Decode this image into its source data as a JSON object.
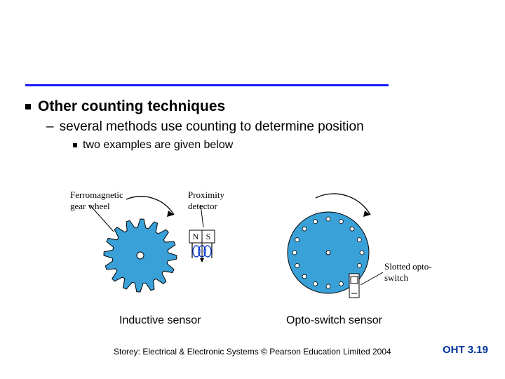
{
  "colors": {
    "rule": "#1a1aff",
    "gear_fill": "#3aa0d8",
    "gear_stroke": "#000000",
    "disc_fill": "#3aa0d8",
    "text": "#000000",
    "page_label": "#003399",
    "magnet_n_s_bg": "#ffffff"
  },
  "heading": "Other counting techniques",
  "sub1": "several methods use counting to determine position",
  "sub2": "two examples are given below",
  "labels": {
    "ferromagnetic": "Ferromagnetic gear wheel",
    "proximity": "Proximity detector",
    "opto": "Slotted opto-switch"
  },
  "captions": {
    "left": "Inductive sensor",
    "right": "Opto-switch sensor"
  },
  "magnet": {
    "n": "N",
    "s": "S"
  },
  "footer": {
    "cite": "Storey: Electrical & Electronic Systems © Pearson Education Limited 2004",
    "page": "OHT 3.19"
  },
  "gear": {
    "teeth": 16,
    "outer_r": 52,
    "inner_r": 40,
    "hub_r": 5
  },
  "disc": {
    "r": 58,
    "holes": 16,
    "hole_r": 3,
    "hole_orbit": 48,
    "hub_r": 3
  }
}
